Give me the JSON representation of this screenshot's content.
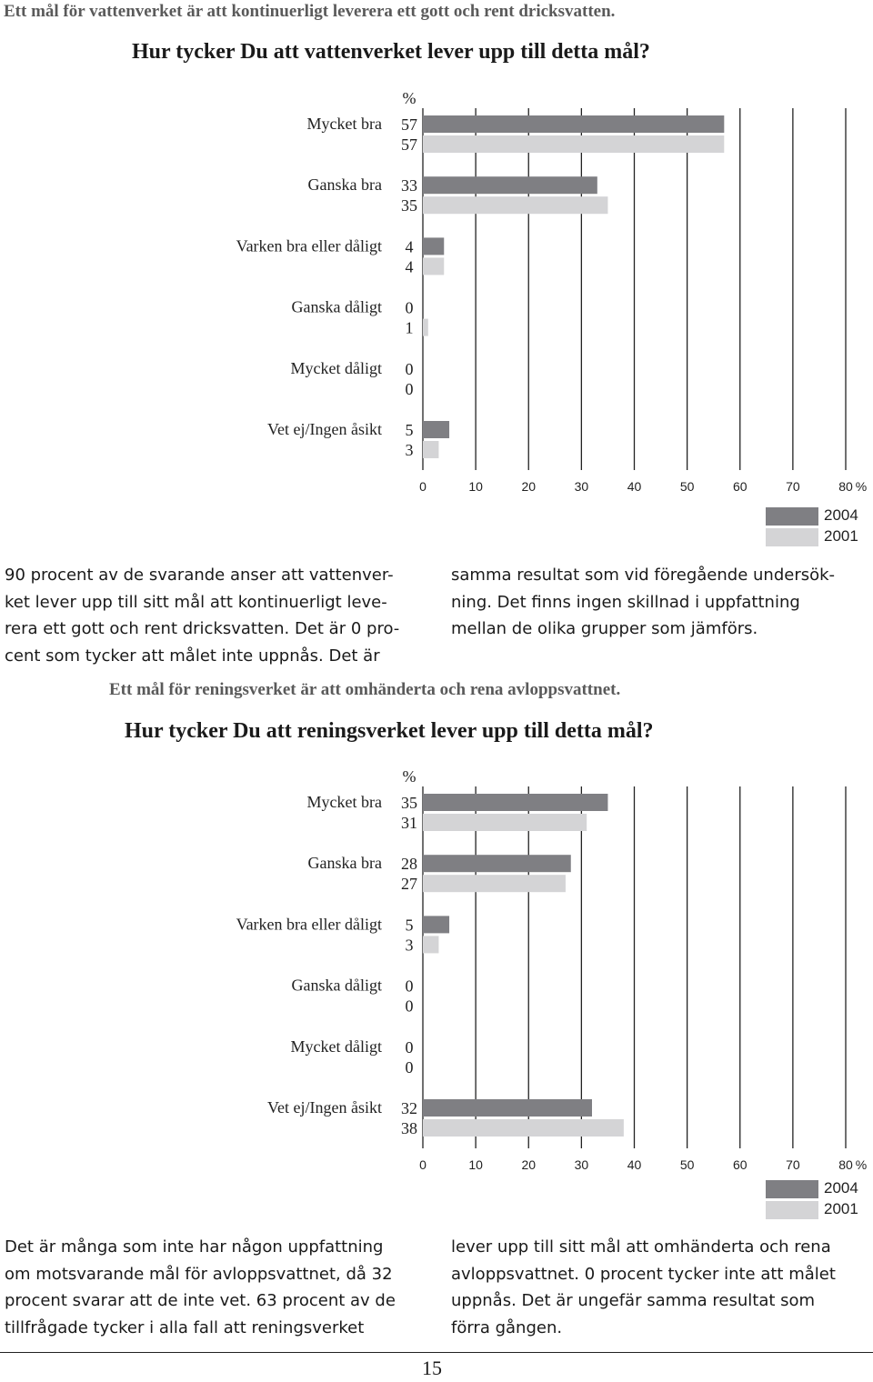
{
  "header": {
    "goal1": "Ett mål för vattenverket är att kontinuerligt leverera ett gott och rent dricksvatten.",
    "question1": "Hur tycker Du att vattenverket lever upp till detta mål?",
    "goal2": "Ett mål för reningsverket är att omhänderta och rena avloppsvattnet.",
    "question2": "Hur tycker Du att reningsverket lever upp till detta mål?"
  },
  "colors": {
    "series_2004": "#7f7f83",
    "series_2001": "#d4d4d6"
  },
  "legend": {
    "label_2004": "2004",
    "label_2001": "2001"
  },
  "chart_data": [
    {
      "type": "bar",
      "orientation": "horizontal",
      "unit_label": "%",
      "categories": [
        "Mycket bra",
        "Ganska bra",
        "Varken bra eller dåligt",
        "Ganska dåligt",
        "Mycket dåligt",
        "Vet ej/Ingen åsikt"
      ],
      "series": [
        {
          "name": "2004",
          "values": [
            57,
            33,
            4,
            0,
            0,
            5
          ]
        },
        {
          "name": "2001",
          "values": [
            57,
            35,
            4,
            1,
            0,
            3
          ]
        }
      ],
      "xticks": [
        "0",
        "10",
        "20",
        "30",
        "40",
        "50",
        "60",
        "70",
        "80"
      ],
      "xlim": [
        0,
        80
      ],
      "legend_position": "bottom-right"
    },
    {
      "type": "bar",
      "orientation": "horizontal",
      "unit_label": "%",
      "categories": [
        "Mycket bra",
        "Ganska bra",
        "Varken bra eller dåligt",
        "Ganska dåligt",
        "Mycket dåligt",
        "Vet ej/Ingen åsikt"
      ],
      "series": [
        {
          "name": "2004",
          "values": [
            35,
            28,
            5,
            0,
            0,
            32
          ]
        },
        {
          "name": "2001",
          "values": [
            31,
            27,
            3,
            0,
            0,
            38
          ]
        }
      ],
      "xticks": [
        "0",
        "10",
        "20",
        "30",
        "40",
        "50",
        "60",
        "70",
        "80"
      ],
      "xlim": [
        0,
        80
      ],
      "legend_position": "bottom-right"
    }
  ],
  "text1_left": [
    "90 procent av de svarande anser att vattenver-",
    "ket lever upp till sitt mål att kontinuerligt leve-",
    "rera ett gott och rent dricksvatten. Det är 0 pro-",
    "cent som tycker att målet inte uppnås. Det är"
  ],
  "text1_right": [
    "samma resultat som vid föregående undersök-",
    "ning. Det finns ingen skillnad i uppfattning",
    "mellan de olika grupper som jämförs."
  ],
  "text2_left": [
    "Det är många som inte har någon uppfattning",
    "om motsvarande mål för avloppsvattnet, då 32",
    "procent svarar att de inte vet. 63 procent av de",
    "tillfrågade tycker i alla fall att reningsverket"
  ],
  "text2_right": [
    "lever upp till sitt mål att omhänderta och rena",
    "avloppsvattnet. 0 procent tycker inte att målet",
    "uppnås. Det är ungefär samma resultat som",
    "förra gången."
  ],
  "page_number": "15"
}
